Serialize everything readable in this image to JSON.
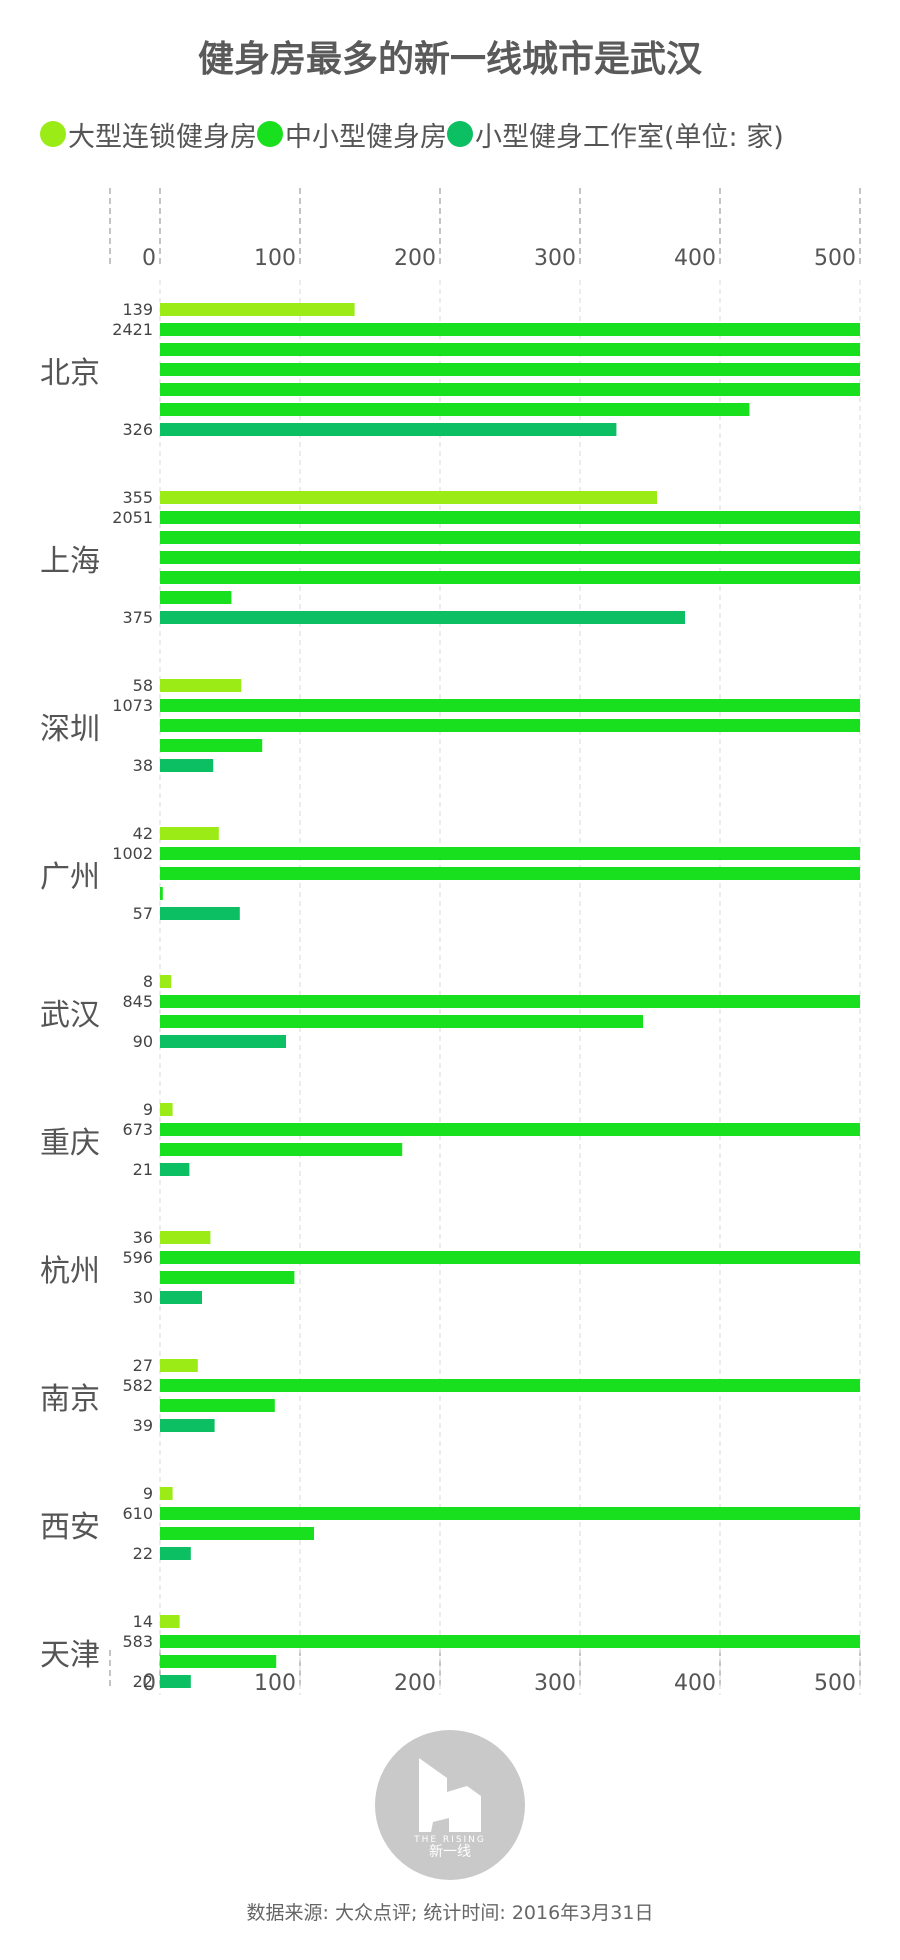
{
  "title": "健身房最多的新一线城市是武汉",
  "legend": {
    "items": [
      {
        "label": "大型连锁健身房",
        "color": "#9BEB16"
      },
      {
        "label": "中小型健身房",
        "color": "#18E01E"
      },
      {
        "label": "小型健身工作室(单位: 家)",
        "color": "#0BBF62"
      }
    ]
  },
  "source": "数据来源: 大众点评; 统计时间: 2016年3月31日",
  "logo": {
    "brand": "THE RISING",
    "name": "新一线"
  },
  "chart_data": {
    "type": "bar",
    "orientation": "horizontal",
    "xlim": [
      0,
      500
    ],
    "xticks": [
      0,
      100,
      200,
      300,
      400,
      500
    ],
    "grid": true,
    "segment_size": 500,
    "categories": [
      "北京",
      "上海",
      "深圳",
      "广州",
      "武汉",
      "重庆",
      "杭州",
      "南京",
      "西安",
      "天津"
    ],
    "series": [
      {
        "name": "大型连锁健身房",
        "values": [
          139,
          355,
          58,
          42,
          8,
          9,
          36,
          27,
          9,
          14
        ]
      },
      {
        "name": "中小型健身房",
        "values": [
          2421,
          2051,
          1073,
          1002,
          845,
          673,
          596,
          582,
          610,
          583
        ]
      },
      {
        "name": "小型健身工作室",
        "values": [
          326,
          375,
          38,
          57,
          90,
          21,
          30,
          39,
          22,
          22
        ]
      }
    ]
  }
}
